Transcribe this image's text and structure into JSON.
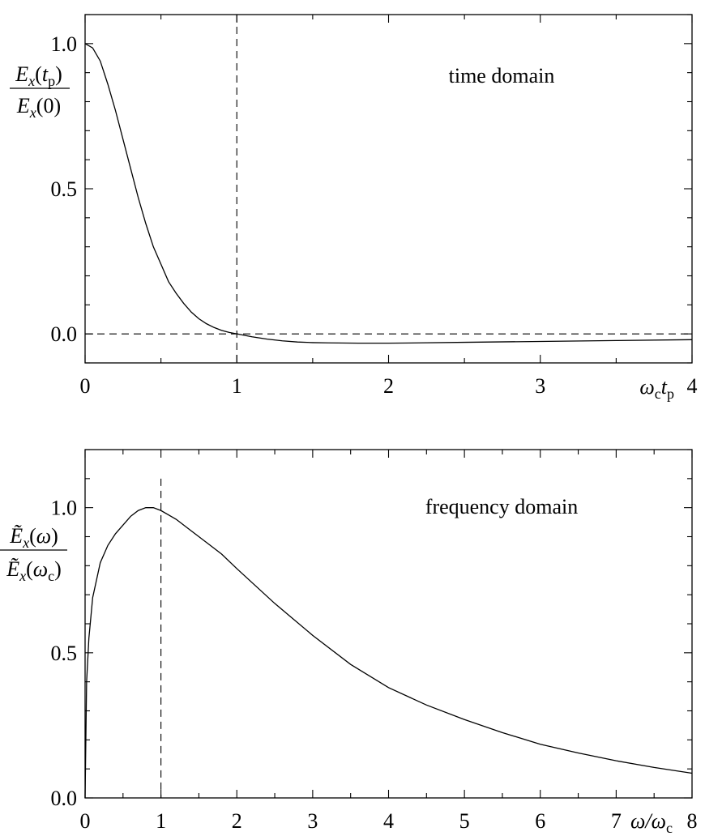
{
  "chart_data": [
    {
      "type": "line",
      "annotation": "time domain",
      "x_axis": {
        "range": [
          0,
          4
        ],
        "tick_labels": [
          "0",
          "1",
          "2",
          "3",
          "4"
        ],
        "label": "ωctp",
        "label_parts": {
          "main": "ω",
          "sub1": "c",
          "main2": "t",
          "sub2": "p"
        }
      },
      "y_axis": {
        "range": [
          -0.1,
          1.1
        ],
        "tick_labels": [
          "0.0",
          "0.5",
          "1.0"
        ],
        "label": "Ex(tp)/Ex(0)",
        "label_parts": {
          "num_main": "E",
          "num_sub": "x",
          "num_arg": "(t",
          "num_arg_sub": "p",
          "num_close": ")",
          "den_main": "E",
          "den_sub": "x",
          "den_arg": "(0)"
        }
      },
      "grid": false,
      "reference_lines": {
        "vertical_x": 1,
        "horizontal_y": 0
      },
      "series": [
        {
          "x": [
            0,
            0.05,
            0.1,
            0.15,
            0.2,
            0.25,
            0.3,
            0.35,
            0.4,
            0.45,
            0.5,
            0.55,
            0.6,
            0.65,
            0.7,
            0.75,
            0.8,
            0.85,
            0.9,
            0.95,
            1.0,
            1.1,
            1.2,
            1.3,
            1.4,
            1.5,
            1.6,
            1.8,
            2.0,
            2.2,
            2.5,
            3.0,
            3.5,
            4.0
          ],
          "y": [
            1.0,
            0.985,
            0.94,
            0.86,
            0.77,
            0.67,
            0.57,
            0.47,
            0.38,
            0.3,
            0.24,
            0.18,
            0.14,
            0.105,
            0.075,
            0.052,
            0.035,
            0.022,
            0.012,
            0.005,
            0.0,
            -0.01,
            -0.018,
            -0.024,
            -0.028,
            -0.03,
            -0.031,
            -0.032,
            -0.032,
            -0.031,
            -0.029,
            -0.026,
            -0.023,
            -0.02
          ]
        }
      ]
    },
    {
      "type": "line",
      "annotation": "frequency domain",
      "x_axis": {
        "range": [
          0,
          8
        ],
        "tick_labels": [
          "0",
          "1",
          "2",
          "3",
          "4",
          "5",
          "6",
          "7",
          "8"
        ],
        "label": "ω/ωc",
        "label_parts": {
          "main": "ω/ω",
          "sub": "c"
        }
      },
      "y_axis": {
        "range": [
          0,
          1.2
        ],
        "tick_labels": [
          "0.0",
          "0.5",
          "1.0"
        ],
        "label": "Ẽx(ω)/Ẽx(ωc)",
        "label_parts": {
          "num_main": "Ẽ",
          "num_sub": "x",
          "num_arg": "(ω)",
          "den_main": "Ẽ",
          "den_sub": "x",
          "den_arg": "(ω",
          "den_arg_sub": "c",
          "den_close": ")"
        }
      },
      "grid": false,
      "reference_lines": {
        "vertical_x": 1
      },
      "series": [
        {
          "x": [
            0,
            0.02,
            0.05,
            0.1,
            0.15,
            0.2,
            0.3,
            0.4,
            0.5,
            0.6,
            0.7,
            0.8,
            0.9,
            1.0,
            1.2,
            1.4,
            1.6,
            1.8,
            2.0,
            2.5,
            3.0,
            3.5,
            4.0,
            4.5,
            5.0,
            5.5,
            6.0,
            6.5,
            7.0,
            7.5,
            8.0
          ],
          "y": [
            0.0,
            0.4,
            0.55,
            0.69,
            0.75,
            0.81,
            0.87,
            0.91,
            0.94,
            0.97,
            0.99,
            1.0,
            1.0,
            0.99,
            0.96,
            0.92,
            0.88,
            0.84,
            0.79,
            0.67,
            0.56,
            0.46,
            0.38,
            0.32,
            0.27,
            0.225,
            0.185,
            0.155,
            0.128,
            0.105,
            0.085
          ]
        }
      ]
    }
  ]
}
